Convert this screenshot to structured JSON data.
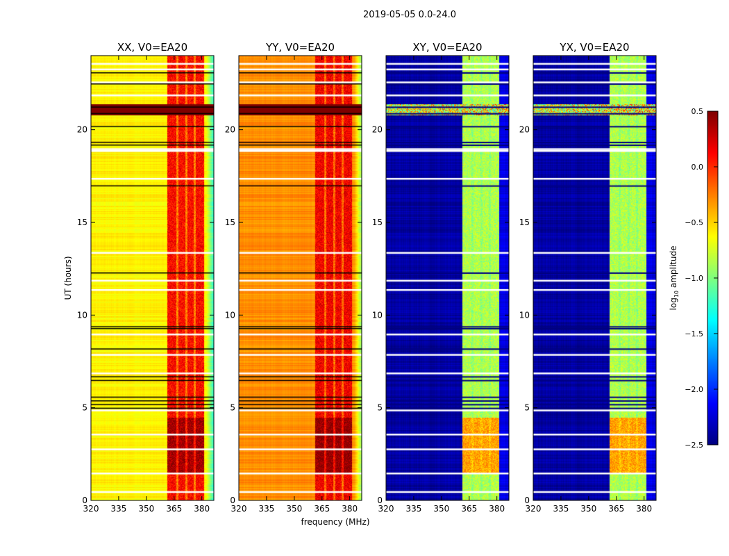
{
  "suptitle": "2019-05-05 0.0-24.0",
  "chart_data": {
    "type": "heatmap",
    "title": "2019-05-05 0.0-24.0",
    "xlabel": "frequency (MHz)",
    "ylabel": "UT (hours)",
    "xlim": [
      320,
      386.5
    ],
    "ylim": [
      0,
      24
    ],
    "xticks": [
      "320",
      "335",
      "350",
      "365",
      "380"
    ],
    "yticks": [
      "0",
      "5",
      "10",
      "15",
      "20"
    ],
    "xtick_values": [
      320,
      335,
      350,
      365,
      380
    ],
    "ytick_values": [
      0,
      5,
      10,
      15,
      20
    ],
    "panels": [
      {
        "title": "XX, V0=EA20",
        "base_level": -0.6,
        "band_level": 0.1,
        "kind": "auto"
      },
      {
        "title": "YY, V0=EA20",
        "base_level": -0.3,
        "band_level": 0.15,
        "kind": "auto"
      },
      {
        "title": "XY, V0=EA20",
        "base_level": -2.4,
        "band_level": -0.85,
        "kind": "cross"
      },
      {
        "title": "YX, V0=EA20",
        "base_level": -2.4,
        "band_level": -0.85,
        "kind": "cross"
      }
    ],
    "high_amplitude_band_mhz": [
      361,
      381
    ],
    "strong_rfi_hours": [
      20.8,
      21.4
    ],
    "flagged_hours_white": [
      23.6,
      23.3,
      22.6,
      21.9,
      19.0,
      18.9,
      17.4,
      13.4,
      11.9,
      11.4,
      9.0,
      7.9,
      6.9,
      4.9,
      3.6,
      2.8,
      1.5,
      0.5
    ],
    "dark_rows_hours": [
      23.1,
      22.5,
      21.25,
      20.9,
      20.2,
      19.35,
      19.2,
      17.0,
      12.3,
      9.4,
      9.3,
      8.2,
      6.7,
      6.5,
      5.6,
      5.4,
      5.2,
      5.0
    ],
    "colorbar": {
      "label": "log10 amplitude",
      "label_main": "log",
      "label_sub": "10",
      "label_rest": " amplitude",
      "colormap": "jet",
      "range": [
        -2.5,
        0.5
      ],
      "ticks": [
        "0.5",
        "0.0",
        "−0.5",
        "−1.0",
        "−1.5",
        "−2.0",
        "−2.5"
      ],
      "tick_values": [
        0.5,
        0.0,
        -0.5,
        -1.0,
        -1.5,
        -2.0,
        -2.5
      ]
    }
  }
}
